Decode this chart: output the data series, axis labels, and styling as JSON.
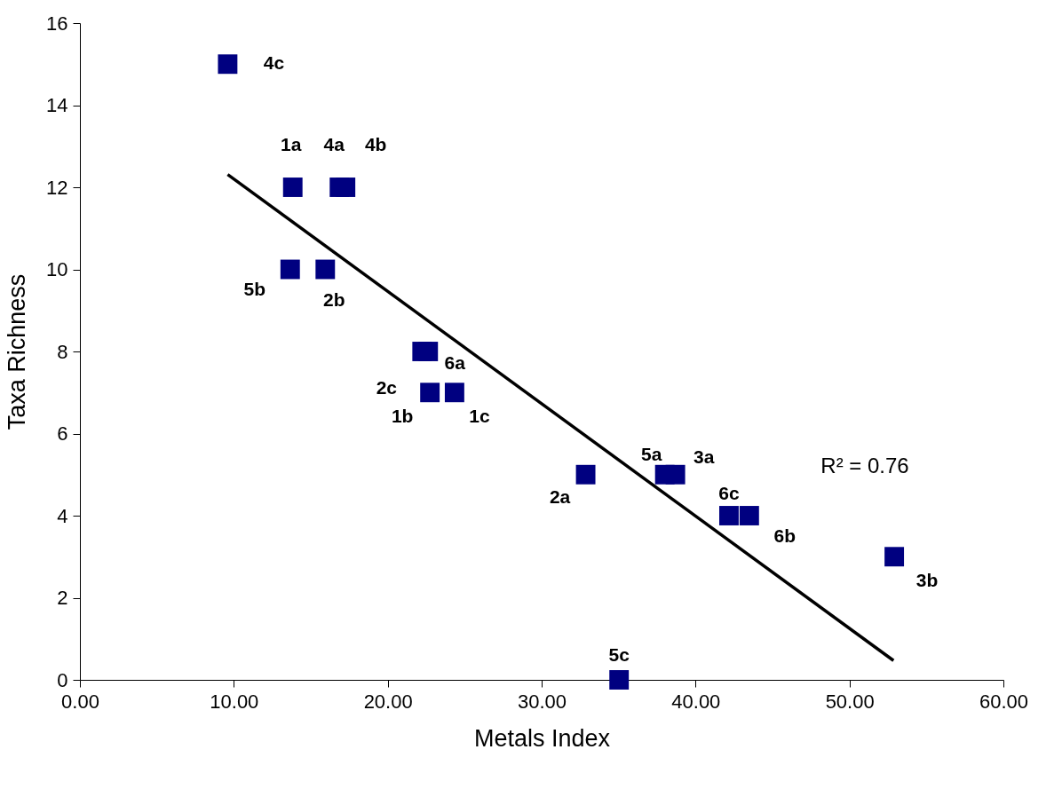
{
  "chart_data": {
    "type": "scatter",
    "xlabel": "Metals Index",
    "ylabel": "Taxa Richness",
    "xlim": [
      0,
      60
    ],
    "ylim": [
      0,
      16
    ],
    "xticks": [
      {
        "value": 0,
        "label": "0.00"
      },
      {
        "value": 10,
        "label": "10.00"
      },
      {
        "value": 20,
        "label": "20.00"
      },
      {
        "value": 30,
        "label": "30.00"
      },
      {
        "value": 40,
        "label": "40.00"
      },
      {
        "value": 50,
        "label": "50.00"
      },
      {
        "value": 60,
        "label": "60.00"
      }
    ],
    "yticks": [
      0,
      2,
      4,
      6,
      8,
      10,
      12,
      14,
      16
    ],
    "grid": false,
    "annotations": [
      "R² = 0.76",
      {
        "text": "4c",
        "x": 9.6,
        "y": 15
      },
      {
        "text": "1a",
        "x": 13.83,
        "y": 12
      },
      {
        "text": "4a",
        "x": 16.86,
        "y": 12
      },
      {
        "text": "4b",
        "x": 17.26,
        "y": 12
      },
      {
        "text": "5b",
        "x": 13.66,
        "y": 10
      },
      {
        "text": "2b",
        "x": 15.94,
        "y": 10
      },
      {
        "text": "2c",
        "x": 22.23,
        "y": 8
      },
      {
        "text": "6a",
        "x": 22.63,
        "y": 8
      },
      {
        "text": "1b",
        "x": 22.74,
        "y": 7
      },
      {
        "text": "1c",
        "x": 24.34,
        "y": 7
      },
      {
        "text": "2a",
        "x": 32.86,
        "y": 5
      },
      {
        "text": "5a",
        "x": 38.0,
        "y": 5
      },
      {
        "text": "3a",
        "x": 38.69,
        "y": 5
      },
      {
        "text": "6c",
        "x": 42.17,
        "y": 4
      },
      {
        "text": "6b",
        "x": 43.49,
        "y": 4
      },
      {
        "text": "3b",
        "x": 52.91,
        "y": 3
      },
      {
        "text": "5c",
        "x": 35.03,
        "y": 0
      }
    ],
    "series": [
      {
        "color": "#000080",
        "marker": "square",
        "x": [
          9.6,
          13.83,
          16.86,
          17.26,
          13.66,
          15.94,
          22.23,
          22.63,
          22.74,
          24.34,
          32.86,
          38.0,
          38.69,
          42.17,
          43.49,
          52.91,
          35.03
        ],
        "values": [
          15,
          12,
          12,
          12,
          10,
          10,
          8,
          8,
          7,
          7,
          5,
          5,
          5,
          4,
          4,
          3,
          0
        ]
      },
      {
        "type": "line",
        "color": "#000000",
        "x": [
          9.6,
          52.86
        ],
        "values": [
          12.31,
          0.47
        ]
      }
    ]
  }
}
